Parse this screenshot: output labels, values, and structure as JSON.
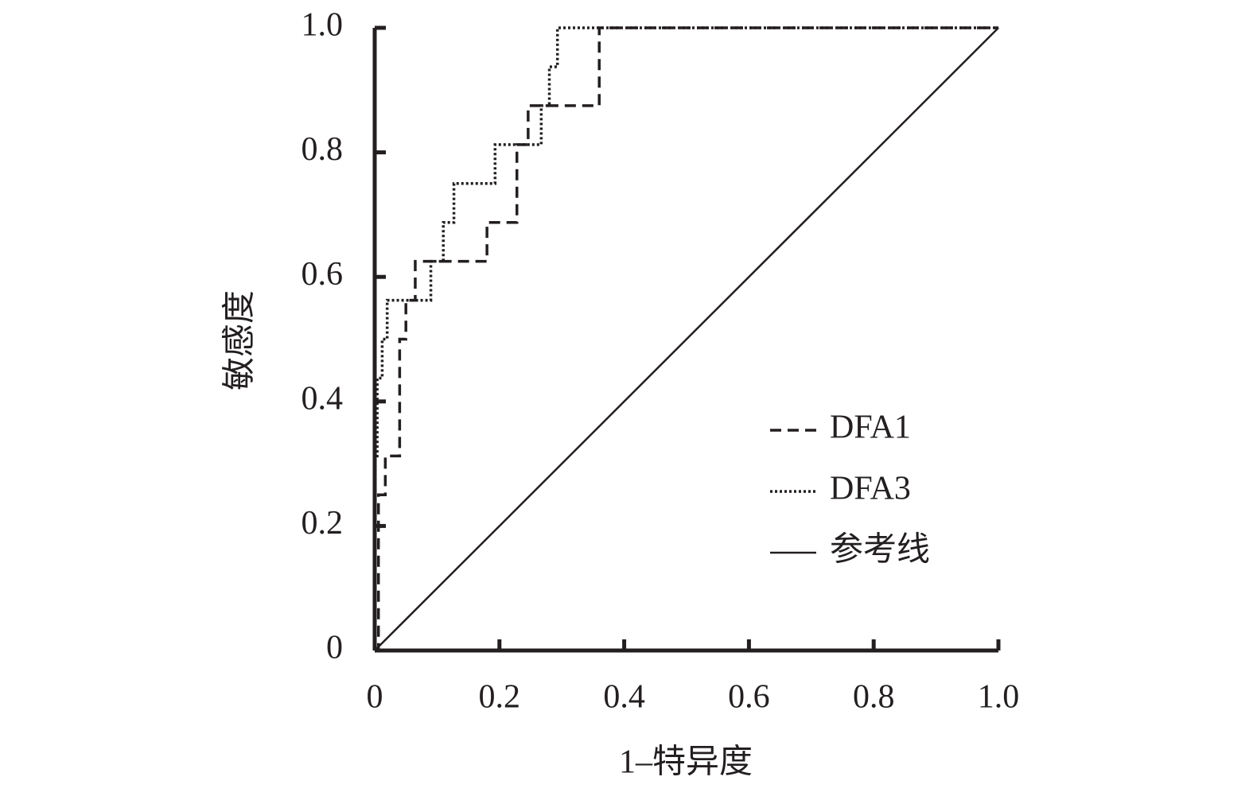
{
  "chart_data": {
    "type": "line",
    "xlabel": "1–特异度",
    "ylabel": "敏感度",
    "xlim": [
      0,
      1
    ],
    "ylim": [
      0,
      1
    ],
    "xticks": [
      0,
      0.2,
      0.4,
      0.6,
      0.8,
      {
        "value": 1,
        "label": "1.0"
      }
    ],
    "yticks": [
      0,
      0.2,
      0.4,
      0.6,
      0.8,
      {
        "value": 1,
        "label": "1.0"
      }
    ],
    "legend": "lower right",
    "series": [
      {
        "name": "DFA1",
        "color": "#231f20",
        "dash": "dashed",
        "x": [
          0,
          0.006,
          0.006,
          0.017,
          0.017,
          0.04,
          0.04,
          0.05,
          0.05,
          0.065,
          0.065,
          0.18,
          0.18,
          0.228,
          0.228,
          0.246,
          0.246,
          0.36,
          0.36,
          1
        ],
        "values": [
          0,
          0,
          0.25,
          0.25,
          0.3125,
          0.3125,
          0.5,
          0.5,
          0.5625,
          0.5625,
          0.625,
          0.625,
          0.6875,
          0.6875,
          0.8125,
          0.8125,
          0.875,
          0.875,
          1,
          1
        ]
      },
      {
        "name": "DFA3",
        "color": "#231f20",
        "dash": "dotted",
        "x": [
          0,
          0,
          0.004,
          0.004,
          0.012,
          0.012,
          0.02,
          0.02,
          0.09,
          0.09,
          0.11,
          0.11,
          0.127,
          0.127,
          0.193,
          0.193,
          0.267,
          0.267,
          0.28,
          0.28,
          0.293,
          0.293,
          1
        ],
        "values": [
          0,
          0.3125,
          0.3125,
          0.4375,
          0.4375,
          0.5,
          0.5,
          0.5625,
          0.5625,
          0.625,
          0.625,
          0.6875,
          0.6875,
          0.75,
          0.75,
          0.8125,
          0.8125,
          0.875,
          0.875,
          0.9375,
          0.9375,
          1,
          1
        ]
      },
      {
        "name": "参考线",
        "color": "#231f20",
        "dash": "solid",
        "x": [
          0,
          1
        ],
        "values": [
          0,
          1
        ]
      }
    ]
  }
}
